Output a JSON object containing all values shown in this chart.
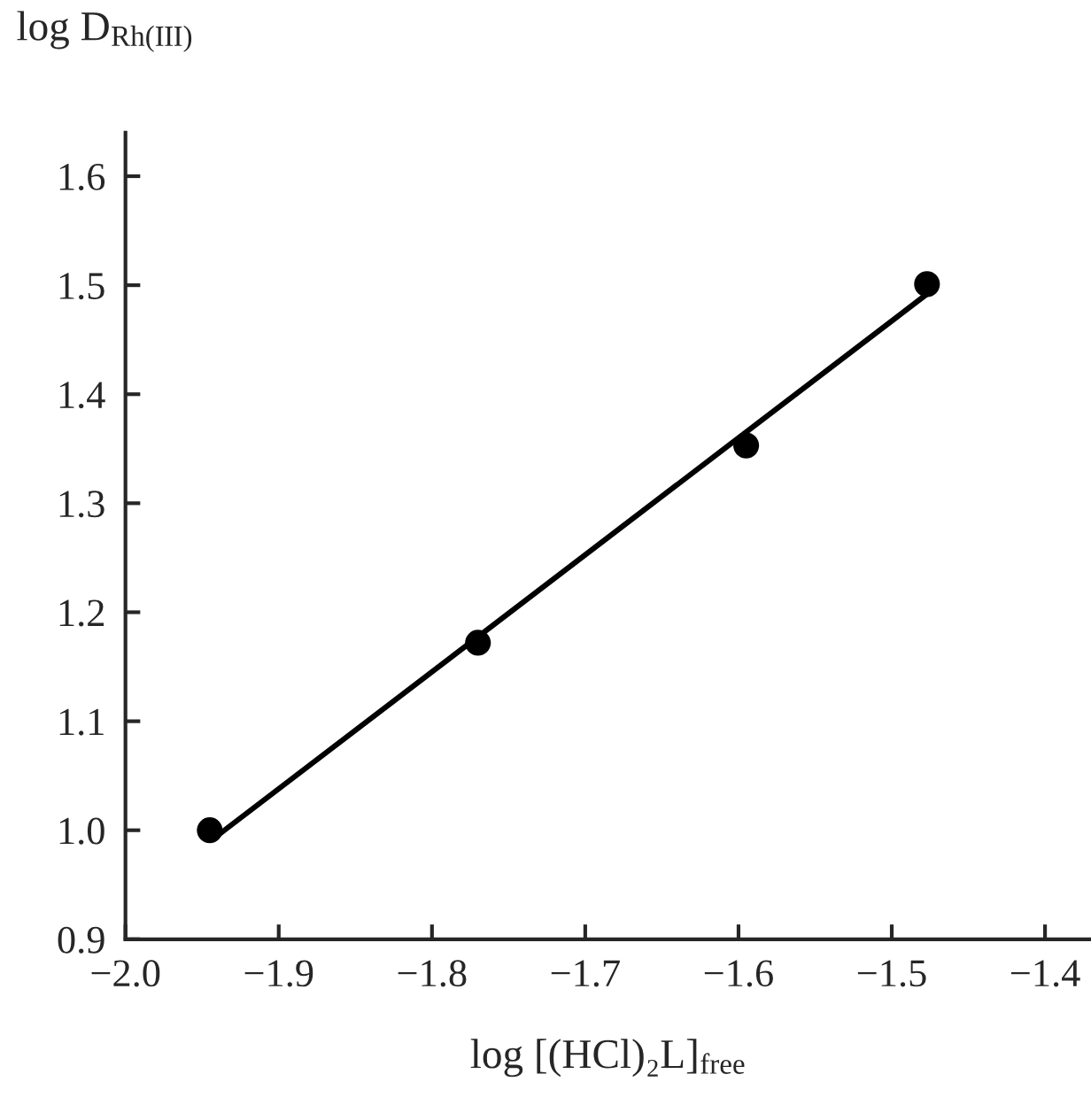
{
  "chart_data": {
    "type": "scatter",
    "xlabel": "log [(HCl)₂L]$_{free}$",
    "ylabel": "log D$_{Rh(III)}$",
    "xlim": [
      -2.0,
      -1.37
    ],
    "ylim": [
      0.9,
      1.64
    ],
    "xticks": [
      {
        "value": -2.0,
        "label": "−2.0"
      },
      -1.9,
      -1.8,
      -1.7,
      -1.6,
      -1.5,
      -1.4
    ],
    "yticks": [
      0.9,
      {
        "value": 1.0,
        "label": "1.0"
      },
      1.1,
      1.2,
      1.3,
      1.4,
      1.5,
      1.6
    ],
    "grid": false,
    "legend": false,
    "series": [
      {
        "color": "#000000",
        "marker": "circle",
        "x": [
          -1.945,
          -1.77,
          -1.595,
          -1.477
        ],
        "values": [
          1.0,
          1.172,
          1.353,
          1.501
        ]
      },
      {
        "type": "line",
        "color": "#000000",
        "marker": "none",
        "line_style": "solid",
        "x": [
          -1.941,
          -1.476
        ],
        "values": [
          0.994,
          1.493
        ]
      }
    ]
  }
}
